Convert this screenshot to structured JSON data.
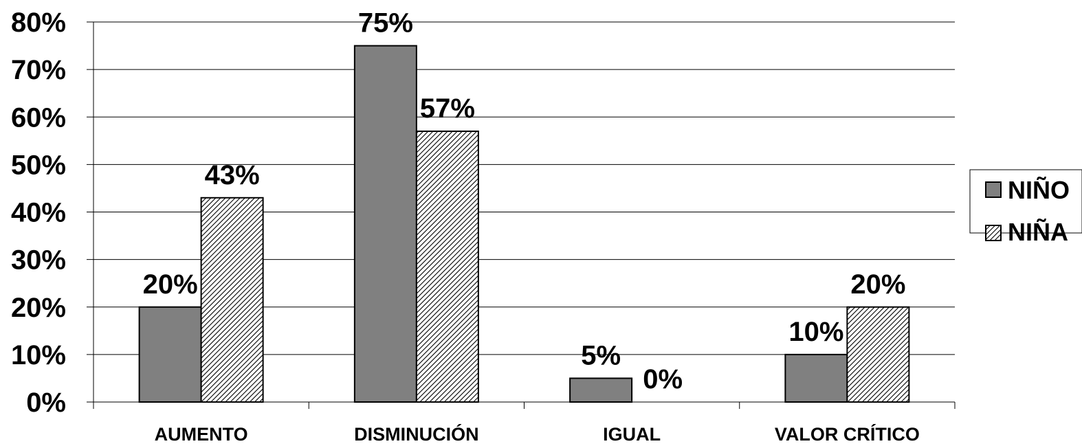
{
  "chart_data": {
    "type": "bar",
    "categories": [
      "AUMENTO",
      "DISMINUCIÓN",
      "IGUAL",
      "VALOR CRÍTICO"
    ],
    "series": [
      {
        "name": "NIÑO",
        "values": [
          20,
          75,
          5,
          10
        ],
        "labels": [
          "20%",
          "75%",
          "5%",
          "10%"
        ],
        "color": "#808080",
        "pattern": "solid"
      },
      {
        "name": "NIÑA",
        "values": [
          43,
          57,
          0,
          20
        ],
        "labels": [
          "43%",
          "57%",
          "0%",
          "20%"
        ],
        "color": "#ffffff",
        "pattern": "diagonal-hatch"
      }
    ],
    "y_ticks": [
      "0%",
      "10%",
      "20%",
      "30%",
      "40%",
      "50%",
      "60%",
      "70%",
      "80%"
    ],
    "ylim": [
      0,
      80
    ],
    "title": "",
    "xlabel": "",
    "ylabel": "",
    "grid": true,
    "legend_position": "right"
  }
}
